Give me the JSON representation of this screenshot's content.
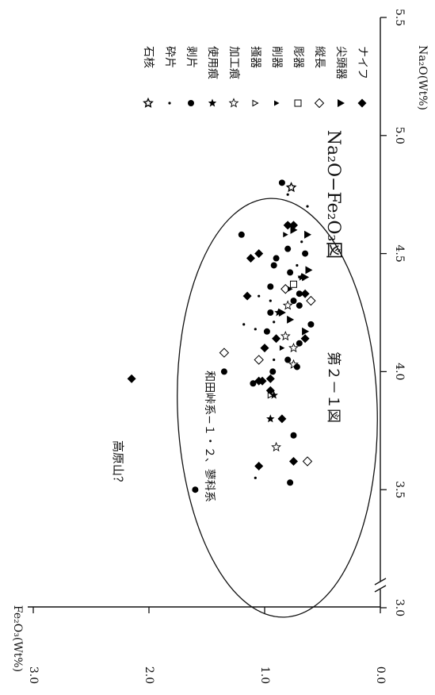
{
  "figure": {
    "number_label": "第２－１図",
    "chart_title": "Na₂O−Fe₂O₃図"
  },
  "chart_data": {
    "type": "scatter",
    "title": "Na₂O−Fe₂O₃図",
    "xlabel": "Na₂O(Wt%)",
    "ylabel": "Fe₂O₃(Wt%)",
    "xlim": [
      3.0,
      5.5
    ],
    "ylim": [
      0.0,
      3.0
    ],
    "x_axis_break": "between 3.0 and 3.5",
    "x_ticks": [
      "3.0",
      "3.5",
      "4.0",
      "4.5",
      "5.0",
      "5.5"
    ],
    "y_ticks": [
      "0.0",
      "1.0",
      "2.0",
      "3.0"
    ],
    "orientation": "rotated 90° clockwise (Na₂O runs top-to-bottom along the right edge, Fe₂O₃ runs right-to-left along the bottom)",
    "legend": [
      {
        "key": "knife",
        "label": "ナイフ",
        "marker": "filled-diamond"
      },
      {
        "key": "point",
        "label": "尖頭器",
        "marker": "filled-triangle"
      },
      {
        "key": "blade",
        "label": "縦長",
        "marker": "open-diamond"
      },
      {
        "key": "burin",
        "label": "彫器",
        "marker": "open-square"
      },
      {
        "key": "sidescraper",
        "label": "削器",
        "marker": "small-filled-triangle"
      },
      {
        "key": "endscraper",
        "label": "掻器",
        "marker": "small-open-triangle"
      },
      {
        "key": "retouched",
        "label": "加工痕",
        "marker": "open-star"
      },
      {
        "key": "used",
        "label": "使用痕",
        "marker": "filled-star"
      },
      {
        "key": "flake",
        "label": "剥片",
        "marker": "filled-circle"
      },
      {
        "key": "chip",
        "label": "砕片",
        "marker": "dot"
      },
      {
        "key": "core",
        "label": "石核",
        "marker": "asterisk-star"
      }
    ],
    "group_annotation": "和田峠系−１・２、蓼科系",
    "outlier_annotation": "高原山？",
    "series": [
      {
        "name": "ナイフ",
        "points": [
          [
            3.97,
            2.15
          ],
          [
            3.6,
            1.05
          ],
          [
            3.62,
            0.75
          ],
          [
            3.8,
            0.85
          ],
          [
            3.92,
            0.95
          ],
          [
            3.96,
            1.02
          ],
          [
            3.96,
            1.05
          ],
          [
            3.97,
            0.95
          ],
          [
            4.1,
            1.0
          ],
          [
            4.14,
            0.9
          ],
          [
            4.14,
            0.65
          ],
          [
            4.32,
            1.15
          ],
          [
            4.33,
            0.65
          ],
          [
            4.48,
            1.12
          ],
          [
            4.5,
            1.05
          ],
          [
            4.62,
            0.8
          ],
          [
            4.62,
            0.75
          ]
        ]
      },
      {
        "name": "尖頭器",
        "points": [
          [
            4.17,
            0.65
          ],
          [
            4.22,
            0.78
          ],
          [
            4.25,
            0.85
          ],
          [
            4.4,
            0.65
          ],
          [
            4.43,
            0.62
          ],
          [
            4.58,
            0.63
          ],
          [
            4.6,
            0.75
          ]
        ]
      },
      {
        "name": "縦長",
        "points": [
          [
            3.62,
            0.63
          ],
          [
            4.05,
            1.05
          ],
          [
            4.08,
            1.35
          ],
          [
            4.3,
            0.6
          ],
          [
            4.35,
            0.82
          ]
        ]
      },
      {
        "name": "彫器",
        "points": [
          [
            4.37,
            0.75
          ]
        ]
      },
      {
        "name": "削器",
        "points": [
          [
            4.1,
            0.85
          ],
          [
            4.35,
            0.78
          ],
          [
            4.58,
            0.82
          ]
        ]
      },
      {
        "name": "掻器",
        "points": [
          [
            3.9,
            0.95
          ]
        ]
      },
      {
        "name": "加工痕",
        "points": [
          [
            3.68,
            0.9
          ],
          [
            4.03,
            0.75
          ],
          [
            4.1,
            0.75
          ],
          [
            4.15,
            0.82
          ],
          [
            4.28,
            0.8
          ]
        ]
      },
      {
        "name": "使用痕",
        "points": [
          [
            3.8,
            0.95
          ],
          [
            3.9,
            0.92
          ],
          [
            4.25,
            0.88
          ],
          [
            4.4,
            0.68
          ]
        ]
      },
      {
        "name": "剥片",
        "points": [
          [
            3.5,
            1.6
          ],
          [
            3.53,
            0.78
          ],
          [
            3.73,
            0.75
          ],
          [
            3.95,
            1.1
          ],
          [
            4.0,
            1.35
          ],
          [
            4.0,
            0.93
          ],
          [
            4.02,
            0.72
          ],
          [
            4.05,
            0.8
          ],
          [
            4.12,
            0.7
          ],
          [
            4.17,
            0.98
          ],
          [
            4.2,
            0.6
          ],
          [
            4.25,
            0.95
          ],
          [
            4.28,
            0.7
          ],
          [
            4.3,
            0.75
          ],
          [
            4.33,
            0.7
          ],
          [
            4.36,
            0.95
          ],
          [
            4.42,
            0.78
          ],
          [
            4.45,
            0.92
          ],
          [
            4.48,
            0.9
          ],
          [
            4.5,
            0.65
          ],
          [
            4.52,
            0.8
          ],
          [
            4.58,
            1.2
          ],
          [
            4.62,
            0.8
          ],
          [
            4.8,
            0.85
          ]
        ]
      },
      {
        "name": "砕片",
        "points": [
          [
            3.55,
            1.08
          ],
          [
            4.05,
            0.92
          ],
          [
            4.18,
            1.08
          ],
          [
            4.2,
            1.18
          ],
          [
            4.21,
            0.92
          ],
          [
            4.3,
            0.95
          ],
          [
            4.32,
            1.05
          ],
          [
            4.4,
            0.7
          ],
          [
            4.45,
            0.72
          ],
          [
            4.55,
            0.68
          ],
          [
            4.7,
            0.63
          ],
          [
            4.75,
            0.8
          ]
        ]
      },
      {
        "name": "石核",
        "points": [
          [
            4.78,
            0.77
          ]
        ]
      }
    ]
  }
}
